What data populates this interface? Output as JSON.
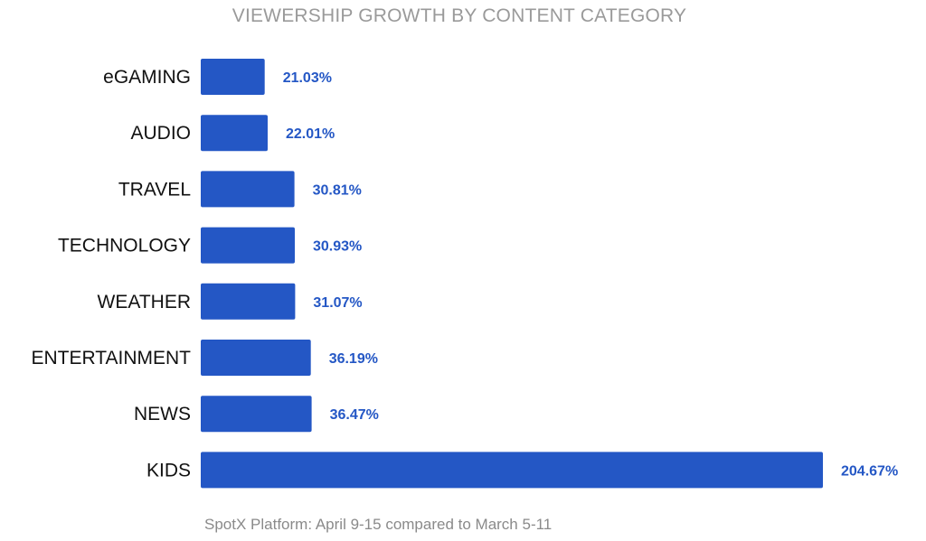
{
  "chart_data": {
    "type": "bar",
    "orientation": "horizontal",
    "title": "VIEWERSHIP GROWTH BY CONTENT CATEGORY",
    "xlabel": "",
    "ylabel": "",
    "categories": [
      "eGAMING",
      "AUDIO",
      "TRAVEL",
      "TECHNOLOGY",
      "WEATHER",
      "ENTERTAINMENT",
      "NEWS",
      "KIDS"
    ],
    "values": [
      21.03,
      22.01,
      30.81,
      30.93,
      31.07,
      36.19,
      36.47,
      204.67
    ],
    "data_labels": [
      "21.03%",
      "22.01%",
      "30.81%",
      "30.93%",
      "31.07%",
      "36.19%",
      "36.47%",
      "204.67%"
    ],
    "unit": "%",
    "xlim": [
      0,
      204.67
    ],
    "grid": false,
    "legend": "none",
    "colors": {
      "bar": "#2457c5",
      "value_label": "#2457c5",
      "category_label": "#111111"
    },
    "footnote": "SpotX Platform: April 9-15 compared to March 5-11"
  }
}
